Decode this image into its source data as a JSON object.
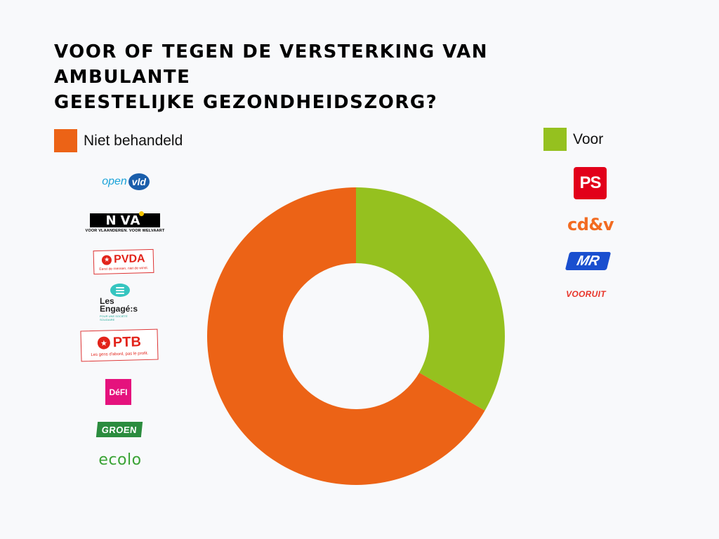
{
  "title_lines": [
    "VOOR OF TEGEN DE VERSTERKING VAN AMBULANTE",
    "GEESTELIJKE GEZONDHEIDSZORG?"
  ],
  "colors": {
    "voor": "#95c11f",
    "niet_behandeld": "#ec6316",
    "background": "#f8f9fb"
  },
  "legend": {
    "niet_behandeld": "Niet behandeld",
    "voor": "Voor"
  },
  "logos_left": {
    "openvld": {
      "open": "open",
      "vld": "vld"
    },
    "nva": {
      "name": "N-VA",
      "tagline": "VOOR VLAANDEREN. VOOR WELVAART"
    },
    "pvda": {
      "name": "PVDA",
      "tagline": "Eerst de mensen, niet de winst."
    },
    "engages": {
      "name": "Les Engagé:s",
      "tagline": "POUR UNE SOCIÉTÉ SOLIDAIRE"
    },
    "ptb": {
      "name": "PTB",
      "tagline": "Les gens d'abord, pas le profit."
    },
    "defi": "DéFI",
    "groen": "GROEN",
    "ecolo": "ecolo"
  },
  "logos_right": {
    "ps": "PS",
    "cdv": "cd&v",
    "mr": "MR",
    "vooruit": "VOORUIT"
  },
  "chart_data": {
    "type": "pie",
    "title": "VOOR OF TEGEN DE VERSTERKING VAN AMBULANTE GEESTELIJKE GEZONDHEIDSZORG?",
    "donut": true,
    "categories": [
      "Voor",
      "Niet behandeld"
    ],
    "values": [
      4,
      8
    ],
    "parties": {
      "Voor": [
        "PS",
        "cd&v",
        "MR",
        "Vooruit"
      ],
      "Niet behandeld": [
        "Open VLD",
        "N-VA",
        "PVDA",
        "Les Engagés",
        "PTB",
        "DéFI",
        "Groen",
        "Ecolo"
      ]
    },
    "colors": [
      "#95c11f",
      "#ec6316"
    ],
    "start_angle_deg": 0,
    "direction": "clockwise",
    "legend_placement": "top"
  }
}
